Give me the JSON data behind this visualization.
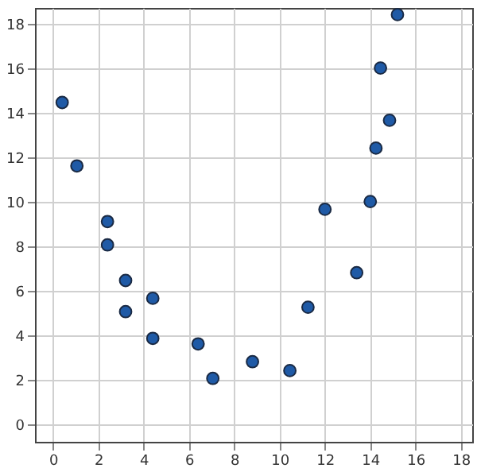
{
  "chart_data": {
    "type": "scatter",
    "x": [
      0.4,
      1.05,
      2.4,
      2.4,
      3.2,
      3.2,
      4.4,
      4.4,
      6.4,
      7.05,
      8.8,
      10.45,
      11.25,
      13.4,
      12.0,
      14.0,
      14.25,
      14.85,
      14.45,
      15.2
    ],
    "values": [
      14.45,
      11.6,
      9.1,
      8.05,
      6.45,
      5.05,
      5.65,
      3.85,
      3.6,
      2.05,
      2.8,
      2.4,
      5.25,
      6.8,
      9.65,
      10.0,
      12.4,
      13.65,
      16.0,
      18.4
    ],
    "color": "#1f5aa6",
    "marker": "circle",
    "grid": true,
    "xlim": [
      -0.8,
      18.5
    ],
    "ylim": [
      -0.8,
      18.7
    ],
    "xticks": [
      0,
      2,
      4,
      6,
      8,
      10,
      12,
      14,
      16,
      18
    ],
    "yticks": [
      0,
      2,
      4,
      6,
      8,
      10,
      12,
      14,
      16,
      18
    ]
  }
}
